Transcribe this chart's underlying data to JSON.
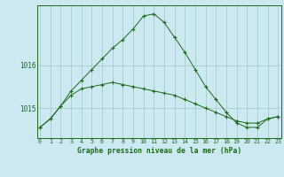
{
  "title": "Graphe pression niveau de la mer (hPa)",
  "bg_color": "#cce8f0",
  "grid_color": "#aacccc",
  "line_color": "#1a6b1a",
  "x_labels": [
    "0",
    "1",
    "2",
    "3",
    "4",
    "5",
    "6",
    "7",
    "8",
    "9",
    "10",
    "11",
    "12",
    "13",
    "14",
    "15",
    "16",
    "17",
    "18",
    "19",
    "20",
    "21",
    "22",
    "23"
  ],
  "ylim": [
    1014.3,
    1017.4
  ],
  "yticks": [
    1015,
    1016
  ],
  "series1": [
    1014.55,
    1014.75,
    1015.05,
    1015.3,
    1015.45,
    1015.5,
    1015.55,
    1015.6,
    1015.55,
    1015.5,
    1015.45,
    1015.4,
    1015.35,
    1015.3,
    1015.2,
    1015.1,
    1015.0,
    1014.9,
    1014.8,
    1014.7,
    1014.65,
    1014.65,
    1014.75,
    1014.8
  ],
  "series2": [
    1014.55,
    1014.75,
    1015.05,
    1015.4,
    1015.65,
    1015.9,
    1016.15,
    1016.4,
    1016.6,
    1016.85,
    1017.15,
    1017.2,
    1017.0,
    1016.65,
    1016.3,
    1015.9,
    1015.5,
    1015.2,
    1014.9,
    1014.65,
    1014.55,
    1014.55,
    1014.75,
    1014.8
  ]
}
